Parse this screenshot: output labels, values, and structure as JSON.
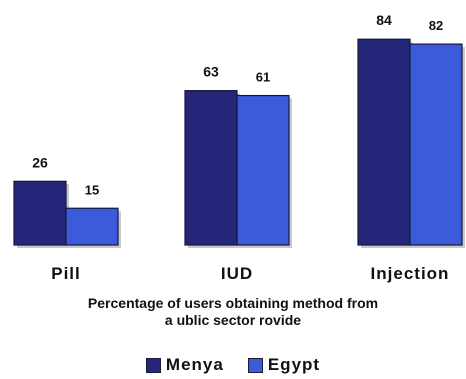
{
  "chart_data": {
    "type": "bar",
    "categories": [
      "Pill",
      "IUD",
      "Injection"
    ],
    "series": [
      {
        "name": "Menya",
        "values": [
          26,
          63,
          84
        ],
        "color": "#25287a"
      },
      {
        "name": "Egypt",
        "values": [
          15,
          61,
          82
        ],
        "color": "#3b5bdb"
      }
    ],
    "ylim": [
      0,
      100
    ],
    "grid": false,
    "legend": "bottom-center",
    "caption": "Percentage of users obtaining method from a ublic sector rovide",
    "caption_lines": [
      "Percentage of users obtaining method from",
      "a ublic sector rovide"
    ]
  }
}
